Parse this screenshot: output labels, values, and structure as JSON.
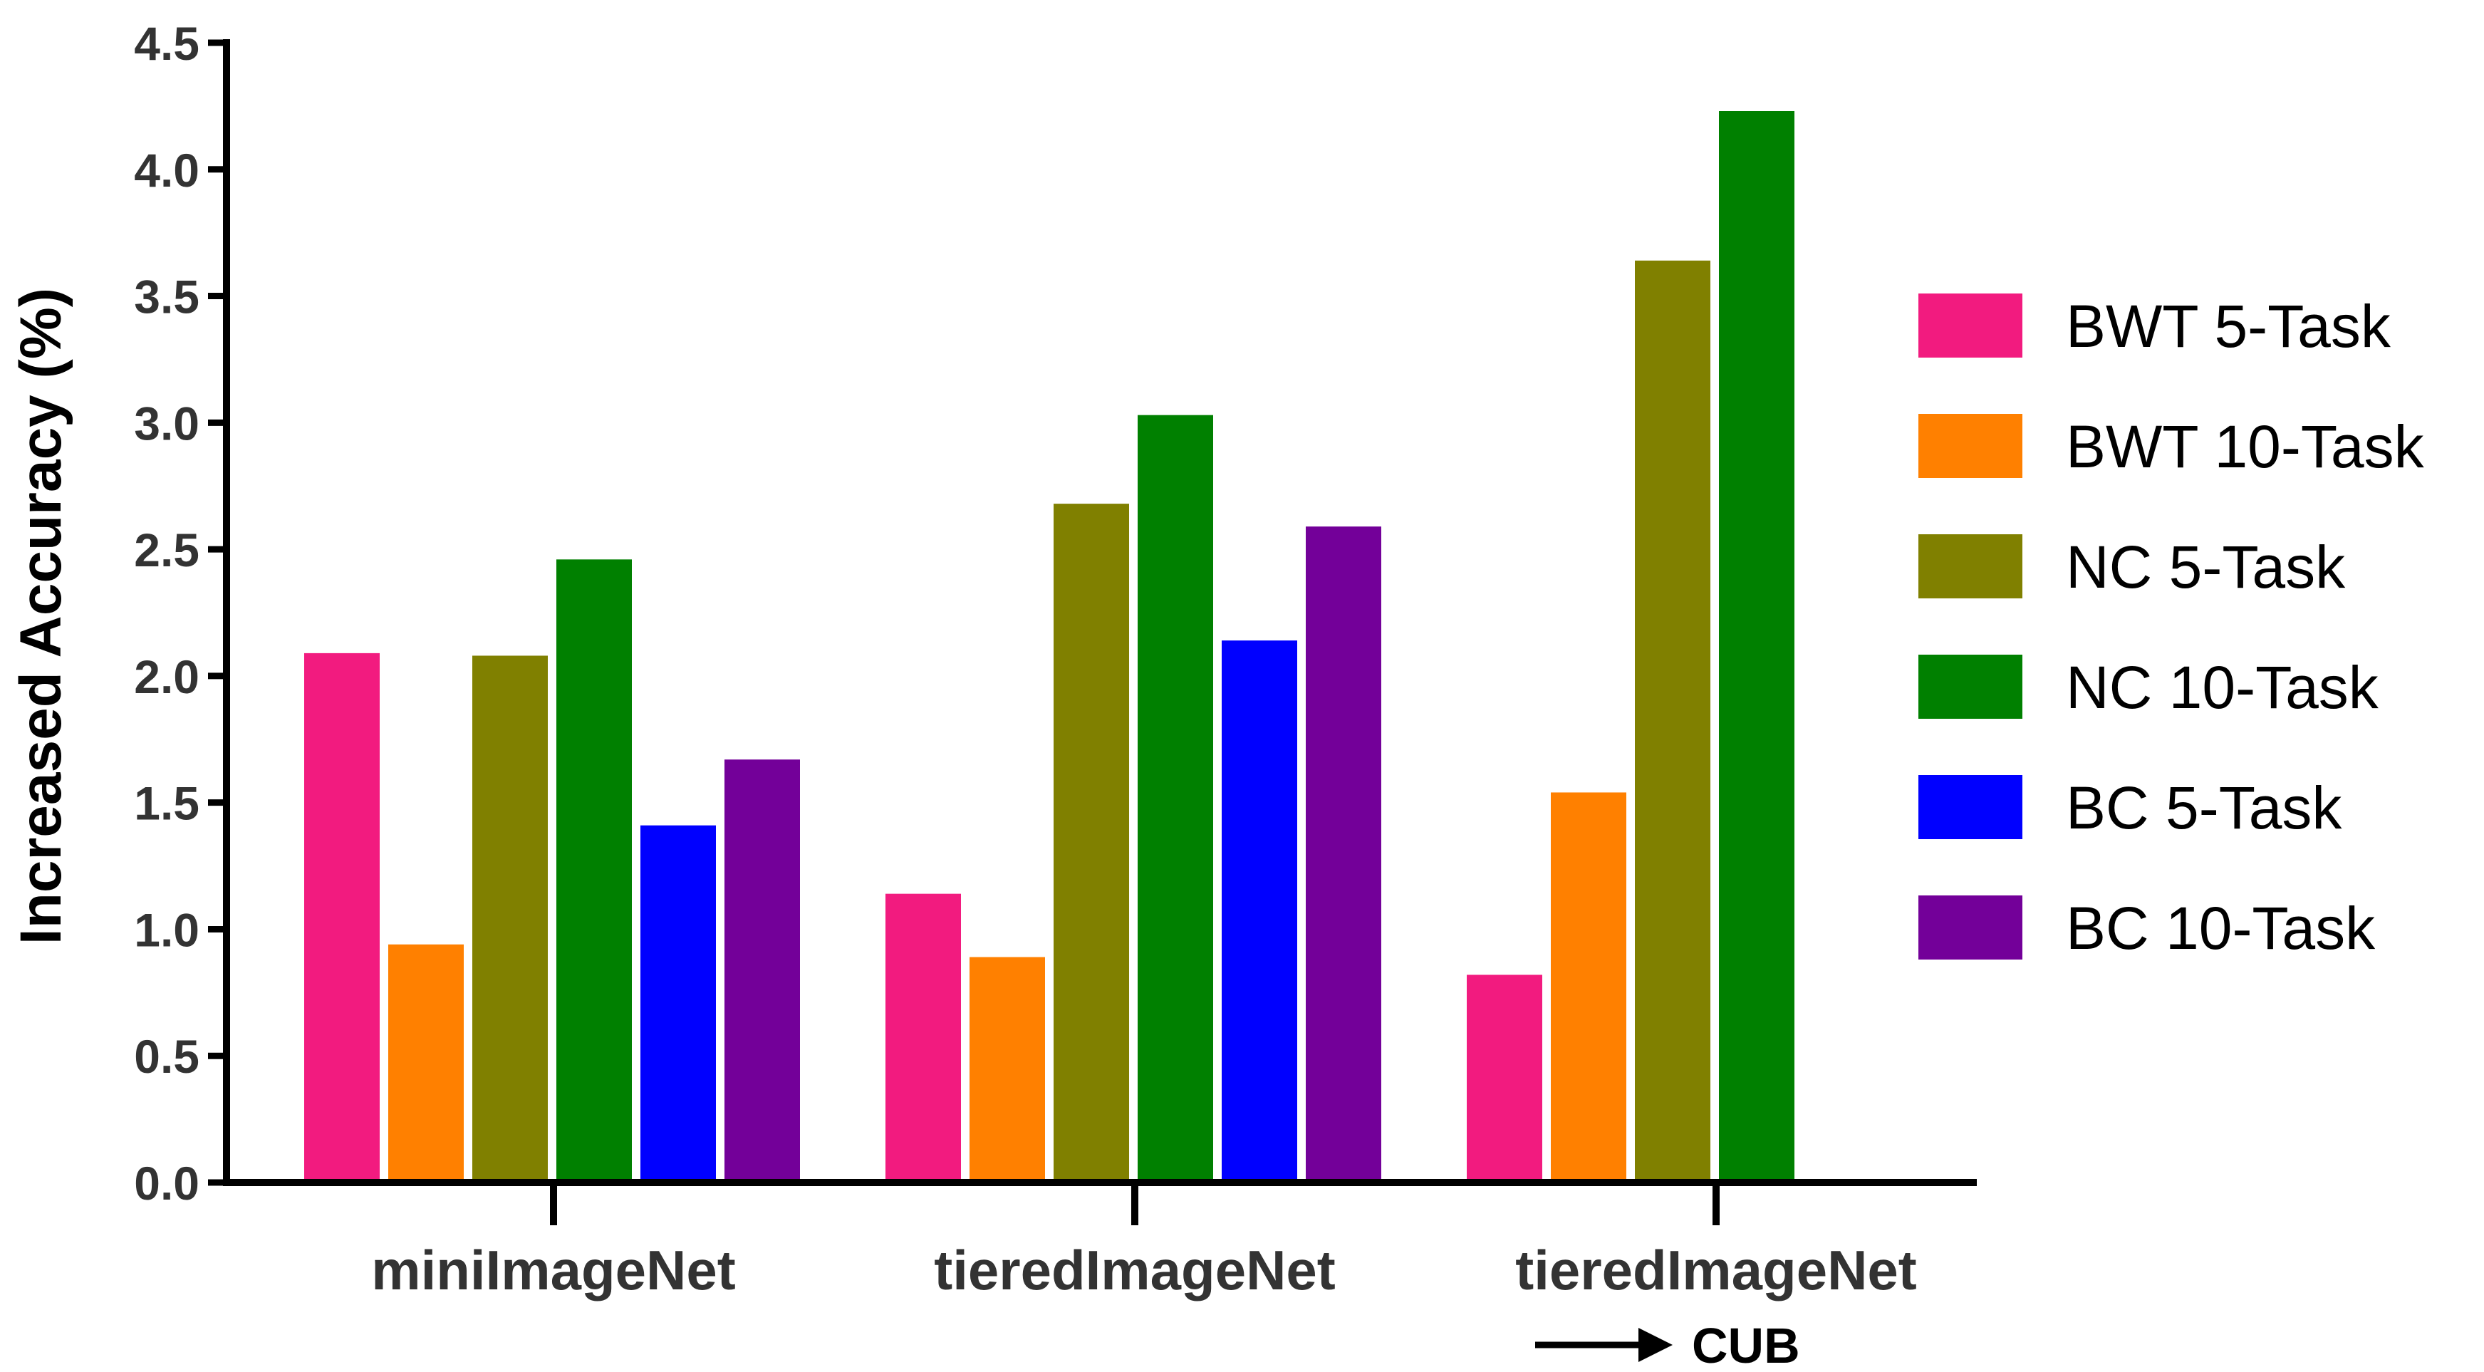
{
  "chart_data": {
    "type": "bar",
    "categories": [
      "miniImageNet",
      "tieredImageNet",
      "tieredImageNet"
    ],
    "category_sublabels": [
      "",
      "",
      "CUB"
    ],
    "ylabel": "Increased Accuracy (%)",
    "xlabel": "",
    "ylim": [
      0,
      4.5
    ],
    "yticks": [
      "0.0",
      "0.5",
      "1.0",
      "1.5",
      "2.0",
      "2.5",
      "3.0",
      "3.5",
      "4.0",
      "4.5"
    ],
    "grid": false,
    "legend_position": "right",
    "series": [
      {
        "name": "BWT 5-Task",
        "color": "#F21B7F",
        "values": [
          2.09,
          1.14,
          0.82
        ]
      },
      {
        "name": "BWT 10-Task",
        "color": "#FF8000",
        "values": [
          0.94,
          0.89,
          1.54
        ]
      },
      {
        "name": "NC 5-Task",
        "color": "#808000",
        "values": [
          2.08,
          2.68,
          3.64
        ]
      },
      {
        "name": "NC 10-Task",
        "color": "#008000",
        "values": [
          2.46,
          3.03,
          4.23
        ]
      },
      {
        "name": "BC 5-Task",
        "color": "#0000FF",
        "values": [
          1.41,
          2.14,
          null
        ]
      },
      {
        "name": "BC 10-Task",
        "color": "#730099",
        "values": [
          1.67,
          2.59,
          null
        ]
      }
    ]
  }
}
